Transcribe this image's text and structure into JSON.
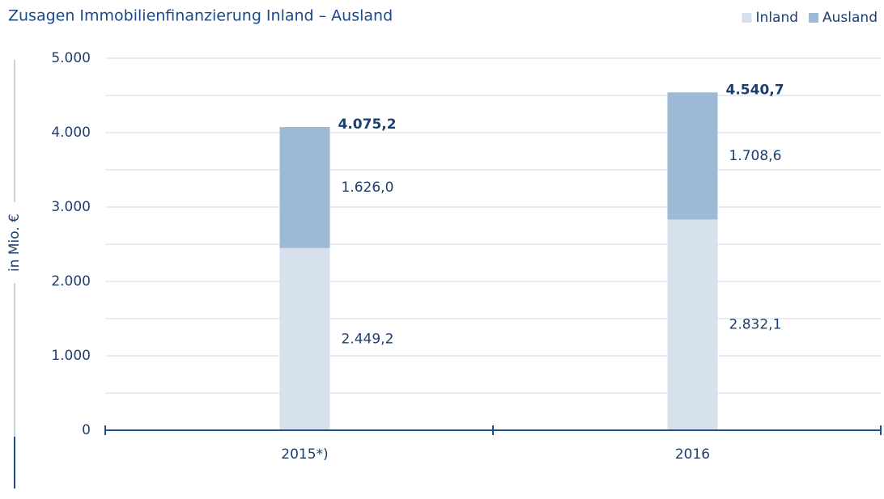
{
  "chart_data": {
    "type": "stacked-bar",
    "title": "Zusagen Immobilienfinanzierung Inland – Ausland",
    "y_label": "in Mio. €",
    "categories": [
      "2015*)",
      "2016"
    ],
    "series": [
      {
        "name": "Inland",
        "color": "#d6e1ed",
        "values": [
          2449.2,
          2832.1
        ],
        "value_labels": [
          "2.449,2",
          "2.832,1"
        ]
      },
      {
        "name": "Ausland",
        "color": "#9db9d5",
        "values": [
          1626.0,
          1708.6
        ],
        "value_labels": [
          "1.626,0",
          "1.708,6"
        ]
      }
    ],
    "totals": [
      4075.2,
      4540.7
    ],
    "total_labels": [
      "4.075,2",
      "4.540,7"
    ],
    "ylim": [
      0,
      5000
    ],
    "yticks": [
      0,
      {
        "value": 1000,
        "label": "1.000"
      },
      {
        "value": 2000,
        "label": "2.000"
      },
      {
        "value": 3000,
        "label": "3.000"
      },
      {
        "value": 4000,
        "label": "4.000"
      },
      {
        "value": 5000,
        "label": "5.000"
      }
    ],
    "minor_yticks": [
      500,
      1500,
      2500,
      3500,
      4500
    ],
    "grid": true,
    "legend": "top-right"
  }
}
